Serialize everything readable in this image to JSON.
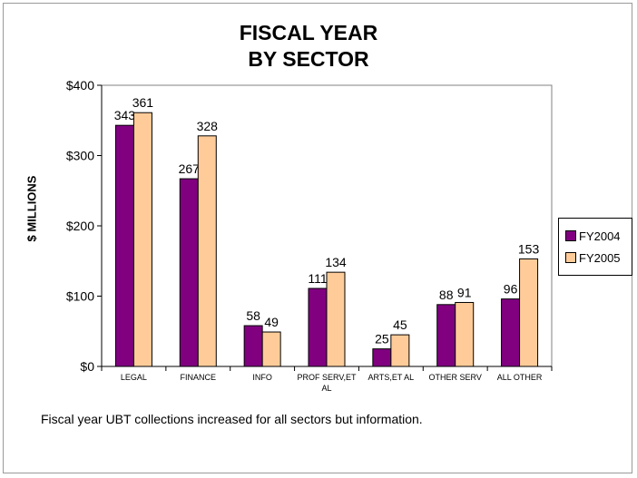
{
  "chart_data": {
    "type": "bar",
    "title_line1": "FISCAL YEAR",
    "title_line2": "BY SECTOR",
    "ylabel": "$ MILLIONS",
    "ylim": [
      0,
      400
    ],
    "yticks": [
      0,
      100,
      200,
      300,
      400
    ],
    "ytick_labels": [
      "$0",
      "$100",
      "$200",
      "$300",
      "$400"
    ],
    "grid": false,
    "legend_position": "right",
    "categories": [
      "LEGAL",
      "FINANCE",
      "INFO",
      "PROF SERV,ET AL",
      "ARTS,ET AL",
      "OTHER SERV",
      "ALL OTHER"
    ],
    "series": [
      {
        "name": "FY2004",
        "color": "#800080",
        "values": [
          343,
          267,
          58,
          111,
          25,
          88,
          96
        ]
      },
      {
        "name": "FY2005",
        "color": "#FFCC99",
        "values": [
          361,
          328,
          49,
          134,
          45,
          91,
          153
        ]
      }
    ]
  },
  "caption": "Fiscal year UBT collections increased for all sectors but information."
}
